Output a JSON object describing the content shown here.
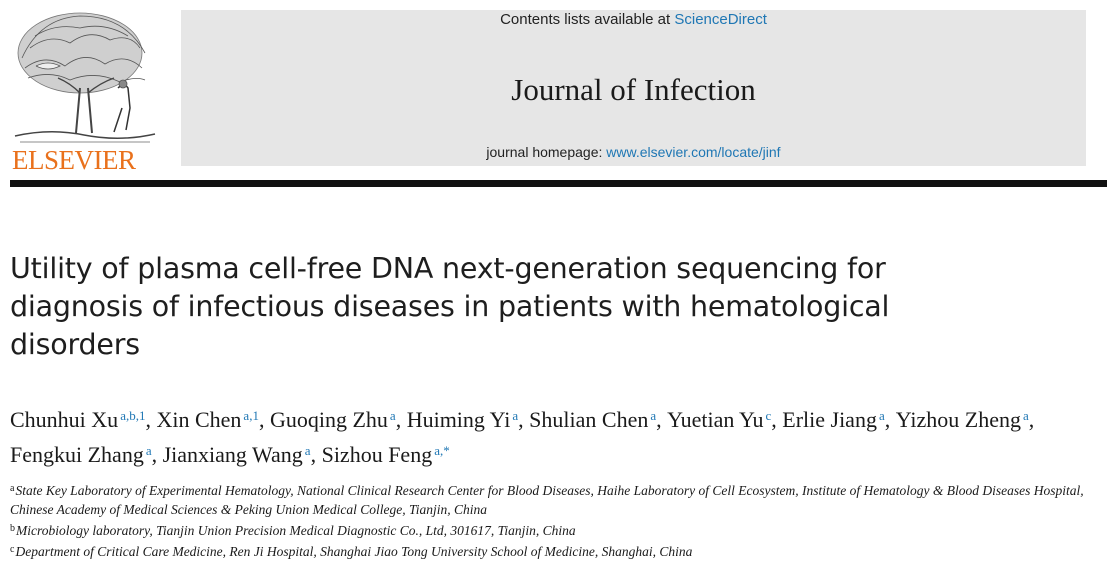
{
  "publisher": {
    "wordmark": "ELSEVIER",
    "logo_icon": "elsevier-tree-logo",
    "wordmark_color": "#e9711c"
  },
  "masthead": {
    "contents_prefix": "Contents lists available at ",
    "contents_link": "ScienceDirect",
    "journal_title": "Journal of Infection",
    "homepage_prefix": "journal homepage: ",
    "homepage_link": "www.elsevier.com/locate/jinf",
    "background_color": "#e6e6e6",
    "link_color": "#1f77b4"
  },
  "article": {
    "title": "Utility of plasma cell-free DNA next-generation sequencing for diagnosis of infectious diseases in patients with hematological disorders"
  },
  "authors": [
    {
      "name": "Chunhui Xu",
      "sup": "a,b,1",
      "sep": ", "
    },
    {
      "name": "Xin Chen",
      "sup": "a,1",
      "sep": ", "
    },
    {
      "name": "Guoqing Zhu",
      "sup": "a",
      "sep": ", "
    },
    {
      "name": "Huiming Yi",
      "sup": "a",
      "sep": ", "
    },
    {
      "name": "Shulian Chen",
      "sup": "a",
      "sep": ", "
    },
    {
      "name": "Yuetian Yu",
      "sup": "c",
      "sep": ", "
    },
    {
      "name": "Erlie Jiang",
      "sup": "a",
      "sep": ", "
    },
    {
      "name": "Yizhou Zheng",
      "sup": "a",
      "sep": ", "
    },
    {
      "name": "Fengkui Zhang",
      "sup": "a",
      "sep": ", "
    },
    {
      "name": "Jianxiang Wang",
      "sup": "a",
      "sep": ", "
    },
    {
      "name": "Sizhou Feng",
      "sup": "a,*",
      "sep": ""
    }
  ],
  "affiliations": [
    {
      "key": "a",
      "text": "State Key Laboratory of Experimental Hematology, National Clinical Research Center for Blood Diseases, Haihe Laboratory of Cell Ecosystem, Institute of Hematology & Blood Diseases Hospital, Chinese Academy of Medical Sciences & Peking Union Medical College, Tianjin, China"
    },
    {
      "key": "b",
      "text": "Microbiology laboratory, Tianjin Union Precision Medical Diagnostic Co., Ltd, 301617, Tianjin, China"
    },
    {
      "key": "c",
      "text": "Department of Critical Care Medicine, Ren Ji Hospital, Shanghai Jiao Tong University School of Medicine, Shanghai, China"
    }
  ]
}
